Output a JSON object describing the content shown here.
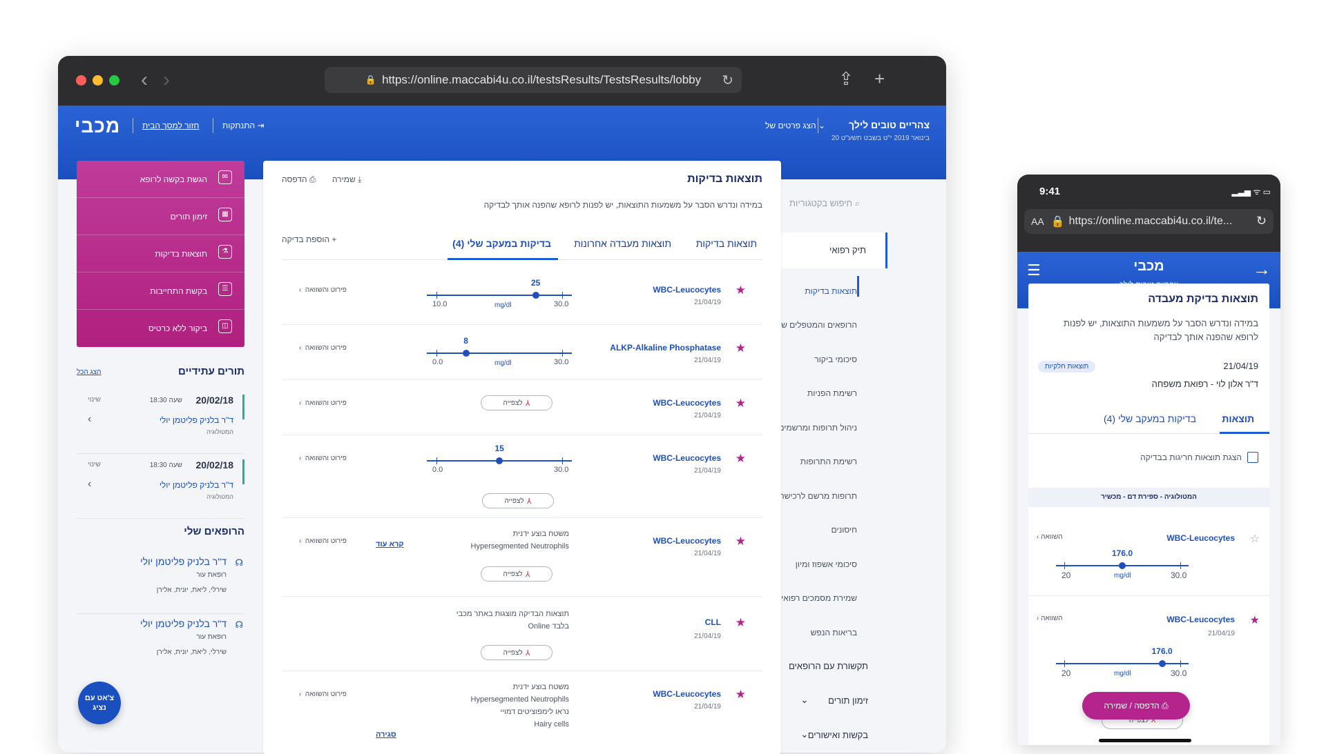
{
  "browser": {
    "url": "https://online.maccabi4u.co.il/testsResults/TestsResults/lobby",
    "dots": [
      "#ff5f57",
      "#febc2e",
      "#28c840"
    ]
  },
  "header": {
    "logo": "מכבי",
    "back_home": "חזור למסך הבית",
    "logout": "התנתקות",
    "greeting": "צהריים טובים לילך",
    "date": "20 בינואר 2019 י\"ט בשבט תשע\"ט",
    "profile": "הצג פרטים של"
  },
  "right_nav": {
    "search_placeholder": "חיפוש בקטגוריות",
    "section": "תיק רפואי",
    "items": [
      "תוצאות בדיקות",
      "הרופאים והמטפלים שלי",
      "סיכומי ביקור",
      "רשימת הפניות",
      "ניהול תרופות ומרשמים",
      "רשימת התרופות",
      "תרופות מרשם לרכישה",
      "חיסונים",
      "סיכומי אשפוז ומיון",
      "שמירת מסמכים רפואיים",
      "בריאות הנפש"
    ],
    "big_items": [
      "תקשורת עם הרופאים",
      "זימון תורים",
      "בקשות ואישורים"
    ]
  },
  "main": {
    "title": "תוצאות בדיקות",
    "description": "במידה ונדרש הסבר על משמעות התוצאות, יש לפנות לרופא שהפנה אותך לבדיקה",
    "print": "הדפסה",
    "save": "שמירה",
    "tabs": [
      "תוצאות בדיקות",
      "תוצאות מעבדה אחרונות",
      "בדיקות במעקב שלי (4)"
    ],
    "add_test": "הוספת בדיקה",
    "compare": "פירוט והשוואה",
    "view": "לצפייה",
    "read_more": "קרא עוד",
    "close": "סגירה",
    "rows": [
      {
        "name": "WBC-Leucocytes",
        "date": "21/04/19",
        "value": "25",
        "low": "10.0",
        "high": "30.0",
        "unit": "mg/dl",
        "frac": 0.75
      },
      {
        "name": "ALKP-Alkaline Phosphatase",
        "date": "21/04/19",
        "value": "8",
        "low": "0.0",
        "high": "30.0",
        "unit": "mg/dl",
        "frac": 0.27
      },
      {
        "name": "WBC-Leucocytes",
        "date": "21/04/19"
      },
      {
        "name": "WBC-Leucocytes",
        "date": "21/04/19",
        "value": "15",
        "low": "0.0",
        "high": "30.0",
        "frac": 0.5
      },
      {
        "name": "WBC-Leucocytes",
        "date": "21/04/19",
        "text1": "משטח בוצע ידנית",
        "text2": "Hypersegmented Neutrophils"
      },
      {
        "name": "CLL",
        "date": "21/04/19",
        "text1": "תוצאות הבדיקה מוצגות באתר מכבי",
        "text2": "Online בלבד"
      },
      {
        "name": "WBC-Leucocytes",
        "date": "21/04/19",
        "text1": "משטח בוצע ידנית",
        "text2": "Hypersegmented Neutrophils",
        "text3": "נראו לימפוציטים דמויי",
        "text4": "Hairy cells"
      }
    ]
  },
  "left_menu": {
    "items": [
      "הגשת בקשה לרופא",
      "זימון תורים",
      "תוצאות בדיקות",
      "בקשת התחייבות",
      "ביקור ללא כרטיס"
    ]
  },
  "appointments": {
    "title": "תורים עתידיים",
    "show_all": "הצג הכל",
    "list": [
      {
        "date": "20/02/18",
        "time": "שעה 18:30",
        "doctor": "ד\"ר בלניק פליטמן יולי",
        "specialty": "המטולוגיה",
        "cancel": "שינוי"
      },
      {
        "date": "20/02/18",
        "time": "שעה 18:30",
        "doctor": "ד\"ר בלניק פליטמן יולי",
        "specialty": "המטולוגיה",
        "cancel": "שינוי"
      }
    ]
  },
  "doctors": {
    "title": "הרופאים שלי",
    "list": [
      {
        "name": "ד\"ר בלניק פליטמן יולי",
        "specialty": "רופאת עור",
        "family": "שירלי, ליאת, יונית, אלירן"
      },
      {
        "name": "ד\"ר בלניק פליטמן יולי",
        "specialty": "רופאת עור",
        "family": "שירלי, ליאת, יונית, אלירן"
      }
    ]
  },
  "chat": {
    "line1": "צ'אט עם",
    "line2": "נציג"
  },
  "phone": {
    "time": "9:41",
    "status": "▂▃▅ ᯤ ▭",
    "aa": "AA",
    "url": "https://online.maccabi4u.co.il/te...",
    "logo": "מכבי",
    "subtitle": "צהריים טובים לילך",
    "title": "תוצאות בדיקת מעבדה",
    "description": "במידה ונדרש הסבר על משמעות התוצאות, יש לפנות לרופא שהפנה אותך לבדיקה",
    "date": "21/04/19",
    "badge": "תוצאות חלקיות",
    "doctor": "ד\"ר אלון לוי - רפואת משפחה",
    "tab_results": "תוצאות",
    "tab_tracked": "בדיקות במעקב שלי (4)",
    "checkbox": "הצגת תוצאות חריגות בבדיקה",
    "category": "המטולוגיה - ספירת דם - מכשיר",
    "compare": "השוואה",
    "rows": [
      {
        "name": "WBC-Leucocytes",
        "value": "176.0",
        "low": "20",
        "high": "30.0",
        "unit": "mg/dl",
        "frac": 0.5
      },
      {
        "name": "WBC-Leucocytes",
        "date": "21/04/19",
        "value": "176.0",
        "low": "20",
        "high": "30.0",
        "unit": "mg/dl",
        "frac": 0.8
      }
    ],
    "print_save": "הדפסה / שמירה",
    "view": "לצפייה"
  }
}
